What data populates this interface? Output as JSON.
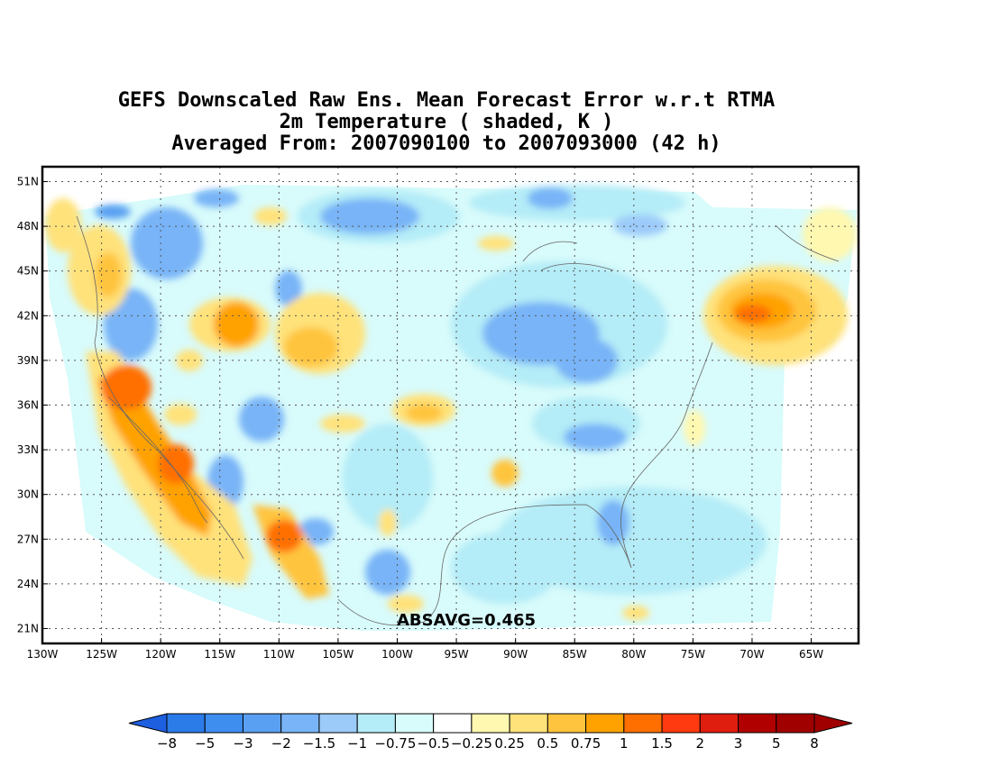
{
  "title": {
    "line1": "GEFS Downscaled Raw Ens. Mean Forecast Error w.r.t RTMA",
    "line2": "2m Temperature ( shaded, K )",
    "line3": "Averaged From: 2007090100 to 2007093000 (42 h)"
  },
  "map": {
    "lon_labels": [
      "130W",
      "125W",
      "120W",
      "115W",
      "110W",
      "105W",
      "100W",
      "95W",
      "90W",
      "85W",
      "80W",
      "75W",
      "70W",
      "65W"
    ],
    "lon_values": [
      -130,
      -125,
      -120,
      -115,
      -110,
      -105,
      -100,
      -95,
      -90,
      -85,
      -80,
      -75,
      -70,
      -65
    ],
    "lat_labels": [
      "21N",
      "24N",
      "27N",
      "30N",
      "33N",
      "36N",
      "39N",
      "42N",
      "45N",
      "48N",
      "51N"
    ],
    "lat_values": [
      21,
      24,
      27,
      30,
      33,
      36,
      39,
      42,
      45,
      48,
      51
    ],
    "lon_range": [
      -130,
      -61
    ],
    "lat_range": [
      20,
      52
    ],
    "grid": "dotted",
    "annotation": "ABSAVG=0.465"
  },
  "colorbar": {
    "labels": [
      "-8",
      "-5",
      "-3",
      "-2",
      "-1.5",
      "-1",
      "-0.75",
      "-0.5",
      "-0.25",
      "0.25",
      "0.5",
      "0.75",
      "1",
      "1.5",
      "2",
      "3",
      "5",
      "8"
    ],
    "colors": [
      "#1e5fe0",
      "#2b7be8",
      "#3e8ef0",
      "#5aa0f2",
      "#78b4f7",
      "#9ccbfa",
      "#b4ecf7",
      "#d8fbfb",
      "#ffffff",
      "#fff8b0",
      "#ffe27a",
      "#ffc43e",
      "#ffa200",
      "#ff6f00",
      "#ff3a10",
      "#e01e10",
      "#b00000",
      "#a00000"
    ]
  },
  "legend_units": "K"
}
